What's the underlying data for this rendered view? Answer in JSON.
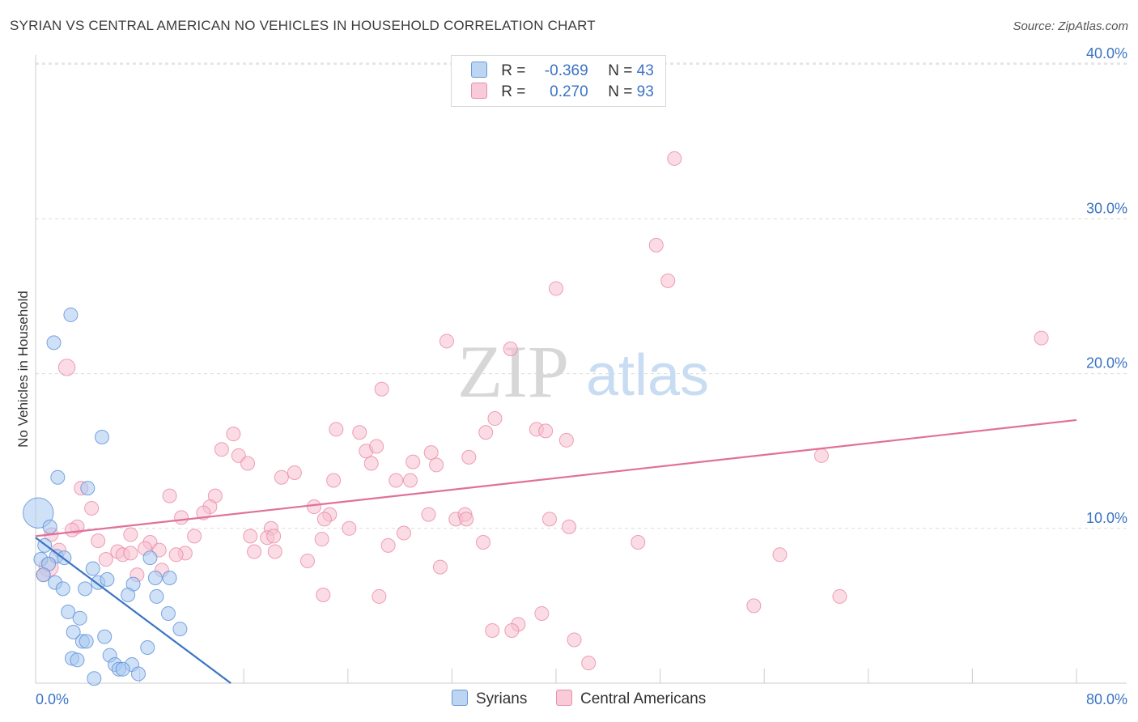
{
  "title": "SYRIAN VS CENTRAL AMERICAN NO VEHICLES IN HOUSEHOLD CORRELATION CHART",
  "source": "Source: ZipAtlas.com",
  "watermark": {
    "zip": "ZIP",
    "atlas": "atlas"
  },
  "legend_top": [
    {
      "r_label": "R =",
      "r_value": "-0.369",
      "n_label": "N =",
      "n_value": "43"
    },
    {
      "r_label": "R =",
      "r_value": "0.270",
      "n_label": "N =",
      "n_value": "93"
    }
  ],
  "legend_bottom": [
    "Syrians",
    "Central Americans"
  ],
  "colors": {
    "syrians_fill": "#a8c8f0",
    "syrians_stroke": "#5b8fd6",
    "syrians_line": "#3a74c4",
    "central_fill": "#f7bfd0",
    "central_stroke": "#e888a8",
    "central_line": "#e0709a",
    "axis_text": "#3a74c4",
    "grid": "#dcdcdc"
  },
  "chart_data": {
    "type": "scatter",
    "title": "SYRIAN VS CENTRAL AMERICAN NO VEHICLES IN HOUSEHOLD CORRELATION CHART",
    "xlabel": "",
    "ylabel": "No Vehicles in Household",
    "xlim": [
      0,
      80
    ],
    "ylim": [
      0,
      42
    ],
    "x_tick_labels": [
      "0.0%",
      "80.0%"
    ],
    "y_ticks": [
      10,
      20,
      30,
      40
    ],
    "y_tick_labels": [
      "10.0%",
      "20.0%",
      "30.0%",
      "40.0%"
    ],
    "series": [
      {
        "name": "Syrians",
        "r": -0.369,
        "n": 43,
        "trend": {
          "x": [
            0,
            15
          ],
          "y": [
            9.4,
            0
          ]
        },
        "points": [
          {
            "x": 0.2,
            "y": 11.0,
            "s": 2.2
          },
          {
            "x": 2.7,
            "y": 23.8
          },
          {
            "x": 1.4,
            "y": 22.0
          },
          {
            "x": 5.1,
            "y": 15.9
          },
          {
            "x": 1.7,
            "y": 13.3
          },
          {
            "x": 4.0,
            "y": 12.6
          },
          {
            "x": 1.1,
            "y": 10.1
          },
          {
            "x": 0.7,
            "y": 8.9
          },
          {
            "x": 0.4,
            "y": 8.0
          },
          {
            "x": 1.6,
            "y": 8.2
          },
          {
            "x": 2.2,
            "y": 8.1
          },
          {
            "x": 1.0,
            "y": 7.7
          },
          {
            "x": 0.6,
            "y": 7.0
          },
          {
            "x": 1.5,
            "y": 6.5
          },
          {
            "x": 2.1,
            "y": 6.1
          },
          {
            "x": 4.4,
            "y": 7.4
          },
          {
            "x": 4.8,
            "y": 6.5
          },
          {
            "x": 5.5,
            "y": 6.7
          },
          {
            "x": 3.8,
            "y": 6.1
          },
          {
            "x": 7.5,
            "y": 6.4
          },
          {
            "x": 8.8,
            "y": 8.1
          },
          {
            "x": 9.2,
            "y": 6.8
          },
          {
            "x": 10.3,
            "y": 6.8
          },
          {
            "x": 7.1,
            "y": 5.7
          },
          {
            "x": 9.3,
            "y": 5.6
          },
          {
            "x": 2.5,
            "y": 4.6
          },
          {
            "x": 3.4,
            "y": 4.2
          },
          {
            "x": 10.2,
            "y": 4.5
          },
          {
            "x": 11.1,
            "y": 3.5
          },
          {
            "x": 2.9,
            "y": 3.3
          },
          {
            "x": 5.3,
            "y": 3.0
          },
          {
            "x": 3.6,
            "y": 2.7
          },
          {
            "x": 3.9,
            "y": 2.7
          },
          {
            "x": 8.6,
            "y": 2.3
          },
          {
            "x": 2.8,
            "y": 1.6
          },
          {
            "x": 3.2,
            "y": 1.5
          },
          {
            "x": 5.7,
            "y": 1.8
          },
          {
            "x": 6.1,
            "y": 1.2
          },
          {
            "x": 7.4,
            "y": 1.2
          },
          {
            "x": 6.4,
            "y": 0.9
          },
          {
            "x": 6.7,
            "y": 0.9
          },
          {
            "x": 7.9,
            "y": 0.6
          },
          {
            "x": 4.5,
            "y": 0.3
          }
        ]
      },
      {
        "name": "Central Americans",
        "r": 0.27,
        "n": 93,
        "trend": {
          "x": [
            0,
            80
          ],
          "y": [
            9.5,
            17.0
          ]
        },
        "points": [
          {
            "x": 49.1,
            "y": 33.9
          },
          {
            "x": 47.7,
            "y": 28.3
          },
          {
            "x": 48.6,
            "y": 26.0
          },
          {
            "x": 40.0,
            "y": 25.5
          },
          {
            "x": 77.3,
            "y": 22.3
          },
          {
            "x": 31.6,
            "y": 22.1
          },
          {
            "x": 36.5,
            "y": 21.6
          },
          {
            "x": 2.4,
            "y": 20.4,
            "s": 1.2
          },
          {
            "x": 26.6,
            "y": 19.0
          },
          {
            "x": 35.3,
            "y": 17.1
          },
          {
            "x": 38.5,
            "y": 16.4
          },
          {
            "x": 39.2,
            "y": 16.3
          },
          {
            "x": 23.1,
            "y": 16.4
          },
          {
            "x": 24.9,
            "y": 16.2
          },
          {
            "x": 34.6,
            "y": 16.2
          },
          {
            "x": 40.8,
            "y": 15.7
          },
          {
            "x": 15.2,
            "y": 16.1
          },
          {
            "x": 14.3,
            "y": 15.1
          },
          {
            "x": 25.4,
            "y": 15.0
          },
          {
            "x": 26.2,
            "y": 15.3
          },
          {
            "x": 30.4,
            "y": 14.9
          },
          {
            "x": 15.6,
            "y": 14.7
          },
          {
            "x": 16.3,
            "y": 14.2
          },
          {
            "x": 25.8,
            "y": 14.2
          },
          {
            "x": 29.0,
            "y": 14.3
          },
          {
            "x": 30.8,
            "y": 14.1
          },
          {
            "x": 33.3,
            "y": 14.6
          },
          {
            "x": 60.4,
            "y": 14.7
          },
          {
            "x": 19.9,
            "y": 13.6
          },
          {
            "x": 18.9,
            "y": 13.3
          },
          {
            "x": 22.9,
            "y": 13.1
          },
          {
            "x": 27.7,
            "y": 13.1
          },
          {
            "x": 28.8,
            "y": 13.1
          },
          {
            "x": 3.5,
            "y": 12.6
          },
          {
            "x": 10.3,
            "y": 12.1
          },
          {
            "x": 13.8,
            "y": 12.1
          },
          {
            "x": 4.3,
            "y": 11.3
          },
          {
            "x": 13.4,
            "y": 11.4
          },
          {
            "x": 12.9,
            "y": 11.0
          },
          {
            "x": 21.4,
            "y": 11.4
          },
          {
            "x": 22.6,
            "y": 10.9
          },
          {
            "x": 22.2,
            "y": 10.6
          },
          {
            "x": 30.2,
            "y": 10.9
          },
          {
            "x": 32.3,
            "y": 10.6
          },
          {
            "x": 33.0,
            "y": 10.9
          },
          {
            "x": 33.1,
            "y": 10.6
          },
          {
            "x": 39.5,
            "y": 10.6
          },
          {
            "x": 11.2,
            "y": 10.7
          },
          {
            "x": 3.2,
            "y": 10.1
          },
          {
            "x": 2.8,
            "y": 9.9
          },
          {
            "x": 1.2,
            "y": 9.6
          },
          {
            "x": 18.1,
            "y": 10.0
          },
          {
            "x": 24.1,
            "y": 10.0
          },
          {
            "x": 28.3,
            "y": 9.7
          },
          {
            "x": 41.0,
            "y": 10.1
          },
          {
            "x": 12.2,
            "y": 9.5
          },
          {
            "x": 16.5,
            "y": 9.5
          },
          {
            "x": 17.8,
            "y": 9.4
          },
          {
            "x": 18.3,
            "y": 9.5
          },
          {
            "x": 7.3,
            "y": 9.6
          },
          {
            "x": 4.8,
            "y": 9.2
          },
          {
            "x": 8.8,
            "y": 9.1
          },
          {
            "x": 22.0,
            "y": 9.3
          },
          {
            "x": 34.4,
            "y": 9.1
          },
          {
            "x": 46.3,
            "y": 9.1
          },
          {
            "x": 27.1,
            "y": 8.9
          },
          {
            "x": 1.8,
            "y": 8.6
          },
          {
            "x": 8.4,
            "y": 8.7
          },
          {
            "x": 9.5,
            "y": 8.6
          },
          {
            "x": 6.3,
            "y": 8.5
          },
          {
            "x": 6.7,
            "y": 8.3
          },
          {
            "x": 7.3,
            "y": 8.4
          },
          {
            "x": 11.5,
            "y": 8.4
          },
          {
            "x": 10.8,
            "y": 8.3
          },
          {
            "x": 16.8,
            "y": 8.5
          },
          {
            "x": 18.4,
            "y": 8.5
          },
          {
            "x": 5.4,
            "y": 8.0
          },
          {
            "x": 20.9,
            "y": 7.9
          },
          {
            "x": 57.2,
            "y": 8.3
          },
          {
            "x": 31.1,
            "y": 7.5
          },
          {
            "x": 1.0,
            "y": 7.5,
            "s": 1.4
          },
          {
            "x": 0.6,
            "y": 7.0
          },
          {
            "x": 7.8,
            "y": 7.0
          },
          {
            "x": 9.7,
            "y": 7.3
          },
          {
            "x": 22.1,
            "y": 5.7
          },
          {
            "x": 26.4,
            "y": 5.6
          },
          {
            "x": 55.2,
            "y": 5.0
          },
          {
            "x": 61.8,
            "y": 5.6
          },
          {
            "x": 38.9,
            "y": 4.5
          },
          {
            "x": 37.1,
            "y": 3.8
          },
          {
            "x": 35.1,
            "y": 3.4
          },
          {
            "x": 36.6,
            "y": 3.4
          },
          {
            "x": 41.4,
            "y": 2.8
          },
          {
            "x": 42.5,
            "y": 1.3
          }
        ]
      }
    ]
  }
}
